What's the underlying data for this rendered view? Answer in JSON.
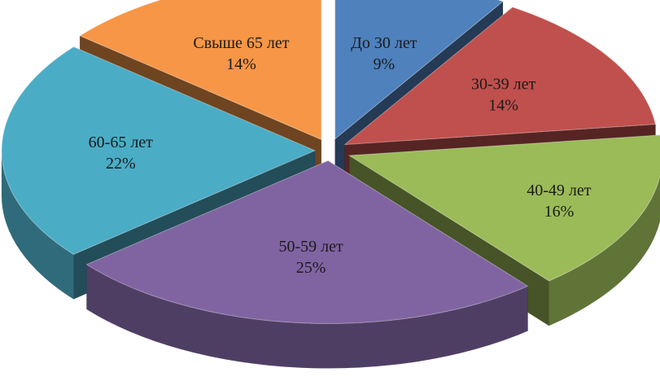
{
  "chart_data": {
    "type": "pie",
    "title": "",
    "start_angle_deg": -90,
    "depth_px": 55,
    "slices": [
      {
        "label": "До 30 лет",
        "value": 9,
        "value_label": "9%",
        "color": "#4F81BD"
      },
      {
        "label": "30-39 лет",
        "value": 14,
        "value_label": "14%",
        "color": "#C0504D"
      },
      {
        "label": "40-49 лет",
        "value": 16,
        "value_label": "16%",
        "color": "#9BBB59"
      },
      {
        "label": "50-59 лет",
        "value": 25,
        "value_label": "25%",
        "color": "#8064A2"
      },
      {
        "label": "60-65 лет",
        "value": 22,
        "value_label": "22%",
        "color": "#4BACC6"
      },
      {
        "label": "Свыше 65 лет",
        "value": 14,
        "value_label": "14%",
        "color": "#F79646"
      }
    ]
  }
}
